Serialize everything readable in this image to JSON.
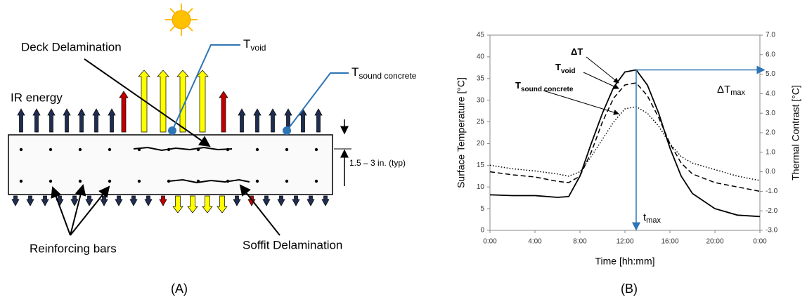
{
  "panel_a": {
    "label": "(A)",
    "deck_delamination": "Deck Delamination",
    "t_void": {
      "base": "T",
      "sub": "void"
    },
    "t_sound": {
      "base": "T",
      "sub": "sound concrete"
    },
    "ir_energy": "IR energy",
    "depth": "1.5 – 3 in. (typ)",
    "reinforcing_bars": "Reinforcing bars",
    "soffit_delamination": "Soffit Delamination"
  },
  "chart_data": {
    "type": "line",
    "panel_label": "(B)",
    "x_label": "Time [hh:mm]",
    "y_label": "Surface Temperature [°C]",
    "y2_label": "Thermal Contrast [°C]",
    "xlim": [
      0,
      24
    ],
    "xticks": [
      {
        "value": 0,
        "label": "0:00"
      },
      {
        "value": 4,
        "label": "4:00"
      },
      {
        "value": 8,
        "label": "8:00"
      },
      {
        "value": 12,
        "label": "12:00"
      },
      {
        "value": 16,
        "label": "16:00"
      },
      {
        "value": 20,
        "label": "20:00"
      },
      {
        "value": 24,
        "label": "0:00"
      }
    ],
    "ylim": [
      0,
      45
    ],
    "yticks": [
      0,
      5,
      10,
      15,
      20,
      25,
      30,
      35,
      40,
      45
    ],
    "y2lim": [
      -3,
      7
    ],
    "y2ticks": [
      {
        "value": -3,
        "label": "-3.0"
      },
      {
        "value": -2,
        "label": "-2.0"
      },
      {
        "value": -1,
        "label": "-1.0"
      },
      {
        "value": 0,
        "label": "0.0"
      },
      {
        "value": 1,
        "label": "1.0"
      },
      {
        "value": 2,
        "label": "2.0"
      },
      {
        "value": 3,
        "label": "3.0"
      },
      {
        "value": 4,
        "label": "4.0"
      },
      {
        "value": 5,
        "label": "5.0"
      },
      {
        "value": 6,
        "label": "6.0"
      },
      {
        "value": 7,
        "label": "7.0"
      }
    ],
    "x": [
      0,
      2,
      4,
      6,
      7,
      8,
      9,
      10,
      11,
      12,
      13,
      14,
      15,
      16,
      17,
      18,
      20,
      22,
      24
    ],
    "series": [
      {
        "name": "ΔT",
        "axis": "y2",
        "color": "#000000",
        "dash": "solid",
        "values": [
          -1.18,
          -1.22,
          -1.22,
          -1.31,
          -1.27,
          -0.22,
          1.44,
          3.0,
          4.33,
          5.11,
          5.22,
          4.44,
          3.0,
          1.22,
          -0.22,
          -1.11,
          -1.89,
          -2.22,
          -2.29
        ]
      },
      {
        "name": "T",
        "name_sub": "void",
        "color": "#000000",
        "dash": "dashed",
        "values": [
          13.5,
          12.8,
          12.3,
          11.3,
          11,
          12.5,
          18,
          25,
          30.5,
          33.5,
          34,
          31,
          26,
          20,
          15.5,
          13,
          11,
          10,
          9
        ]
      },
      {
        "name": "T",
        "name_sub": "sound concrete",
        "color": "#000000",
        "dash": "dotted",
        "values": [
          15,
          14.2,
          13.7,
          13,
          12.5,
          13.5,
          17,
          21,
          25,
          28,
          28.5,
          27,
          24,
          20,
          17,
          15.5,
          14,
          12.5,
          11.5
        ]
      }
    ],
    "annotations": {
      "color": "#2e75b6",
      "t_max": {
        "base": "t",
        "sub": "max",
        "x": 13
      },
      "dt_max": {
        "base": "ΔT",
        "sub": "max",
        "y2": 5.22
      }
    }
  }
}
